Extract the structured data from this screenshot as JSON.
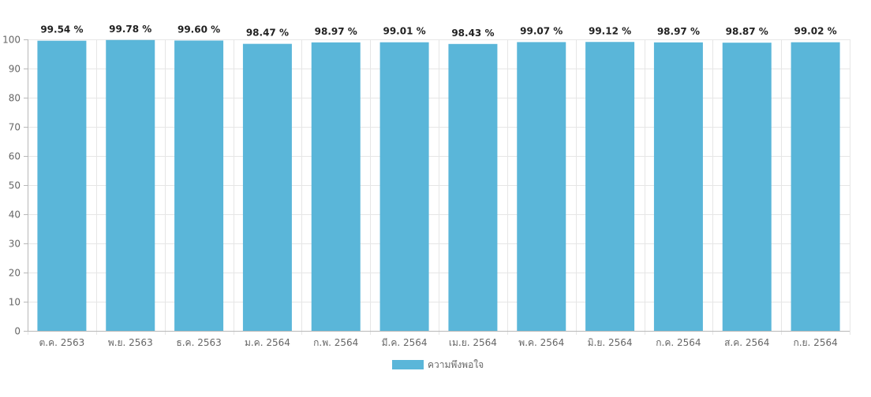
{
  "chart_data": {
    "type": "bar",
    "categories": [
      "ต.ค. 2563",
      "พ.ย. 2563",
      "ธ.ค. 2563",
      "ม.ค. 2564",
      "ก.พ. 2564",
      "มี.ค. 2564",
      "เม.ย. 2564",
      "พ.ค. 2564",
      "มิ.ย. 2564",
      "ก.ค. 2564",
      "ส.ค. 2564",
      "ก.ย. 2564"
    ],
    "series": [
      {
        "name": "ความพึงพอใจ",
        "values": [
          99.54,
          99.78,
          99.6,
          98.47,
          98.97,
          99.01,
          98.43,
          99.07,
          99.12,
          98.97,
          98.87,
          99.02
        ],
        "color": "#5ab6d9"
      }
    ],
    "data_labels": [
      "99.54 %",
      "99.78 %",
      "99.60 %",
      "98.47 %",
      "98.97 %",
      "99.01 %",
      "98.43 %",
      "99.07 %",
      "99.12 %",
      "98.97 %",
      "98.87 %",
      "99.02 %"
    ],
    "title": "",
    "xlabel": "",
    "ylabel": "",
    "ylim": [
      0,
      100
    ],
    "yticks": [
      0,
      10,
      20,
      30,
      40,
      50,
      60,
      70,
      80,
      90,
      100
    ],
    "grid": true,
    "legend_position": "bottom"
  }
}
